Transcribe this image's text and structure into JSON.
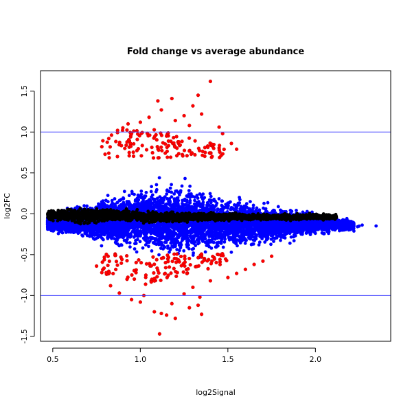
{
  "chart_data": {
    "type": "scatter",
    "title": "Fold change vs average abundance",
    "xlabel": "log2Signal",
    "ylabel": "log2FC",
    "xlim": [
      0.43,
      2.43
    ],
    "ylim": [
      -1.56,
      1.75
    ],
    "x_ticks": [
      0.5,
      1.0,
      1.5,
      2.0
    ],
    "y_ticks": [
      -1.5,
      -1.0,
      -0.5,
      0.0,
      0.5,
      1.0,
      1.5
    ],
    "x_tick_labels": [
      "0.5",
      "1.0",
      "1.5",
      "2.0"
    ],
    "y_tick_labels": [
      "-1.5",
      "-1.0",
      "-0.5",
      "0.0",
      "0.5",
      "1.0",
      "1.5"
    ],
    "hlines": [
      1.0,
      -1.0
    ],
    "hline_color": "#4040ff",
    "grid": false,
    "series_colors": {
      "black": "#000000",
      "blue": "#0000ff",
      "red": "#ff0000"
    },
    "red_points": [
      [
        0.87,
        1.02
      ],
      [
        0.9,
        1.05
      ],
      [
        0.95,
        0.98
      ],
      [
        1.0,
        1.12
      ],
      [
        1.05,
        1.18
      ],
      [
        1.1,
        1.38
      ],
      [
        1.18,
        1.41
      ],
      [
        1.25,
        1.2
      ],
      [
        1.3,
        1.32
      ],
      [
        1.33,
        1.45
      ],
      [
        1.35,
        1.22
      ],
      [
        1.4,
        1.62
      ],
      [
        1.45,
        1.06
      ],
      [
        1.47,
        0.98
      ],
      [
        1.52,
        0.86
      ],
      [
        1.55,
        0.79
      ],
      [
        0.82,
        0.92
      ],
      [
        0.78,
        0.82
      ],
      [
        1.12,
        1.27
      ],
      [
        1.2,
        1.14
      ],
      [
        1.28,
        1.08
      ],
      [
        1.15,
        0.95
      ],
      [
        1.22,
        0.88
      ],
      [
        0.93,
        1.1
      ],
      [
        1.08,
        -1.2
      ],
      [
        1.12,
        -1.22
      ],
      [
        1.15,
        -1.24
      ],
      [
        1.2,
        -1.28
      ],
      [
        1.11,
        -1.47
      ],
      [
        1.35,
        -1.23
      ],
      [
        1.34,
        -1.02
      ],
      [
        1.33,
        -1.12
      ],
      [
        1.0,
        -1.08
      ],
      [
        0.95,
        -1.05
      ],
      [
        0.88,
        -0.97
      ],
      [
        0.83,
        -0.88
      ],
      [
        0.75,
        -0.64
      ],
      [
        0.78,
        -0.72
      ],
      [
        1.02,
        -1.0
      ],
      [
        1.25,
        -0.98
      ],
      [
        1.3,
        -0.9
      ],
      [
        1.4,
        -0.82
      ],
      [
        1.5,
        -0.78
      ],
      [
        1.55,
        -0.73
      ],
      [
        1.6,
        -0.68
      ],
      [
        1.65,
        -0.62
      ],
      [
        1.7,
        -0.58
      ],
      [
        1.75,
        -0.52
      ],
      [
        1.28,
        -1.15
      ],
      [
        1.18,
        -1.1
      ]
    ]
  }
}
